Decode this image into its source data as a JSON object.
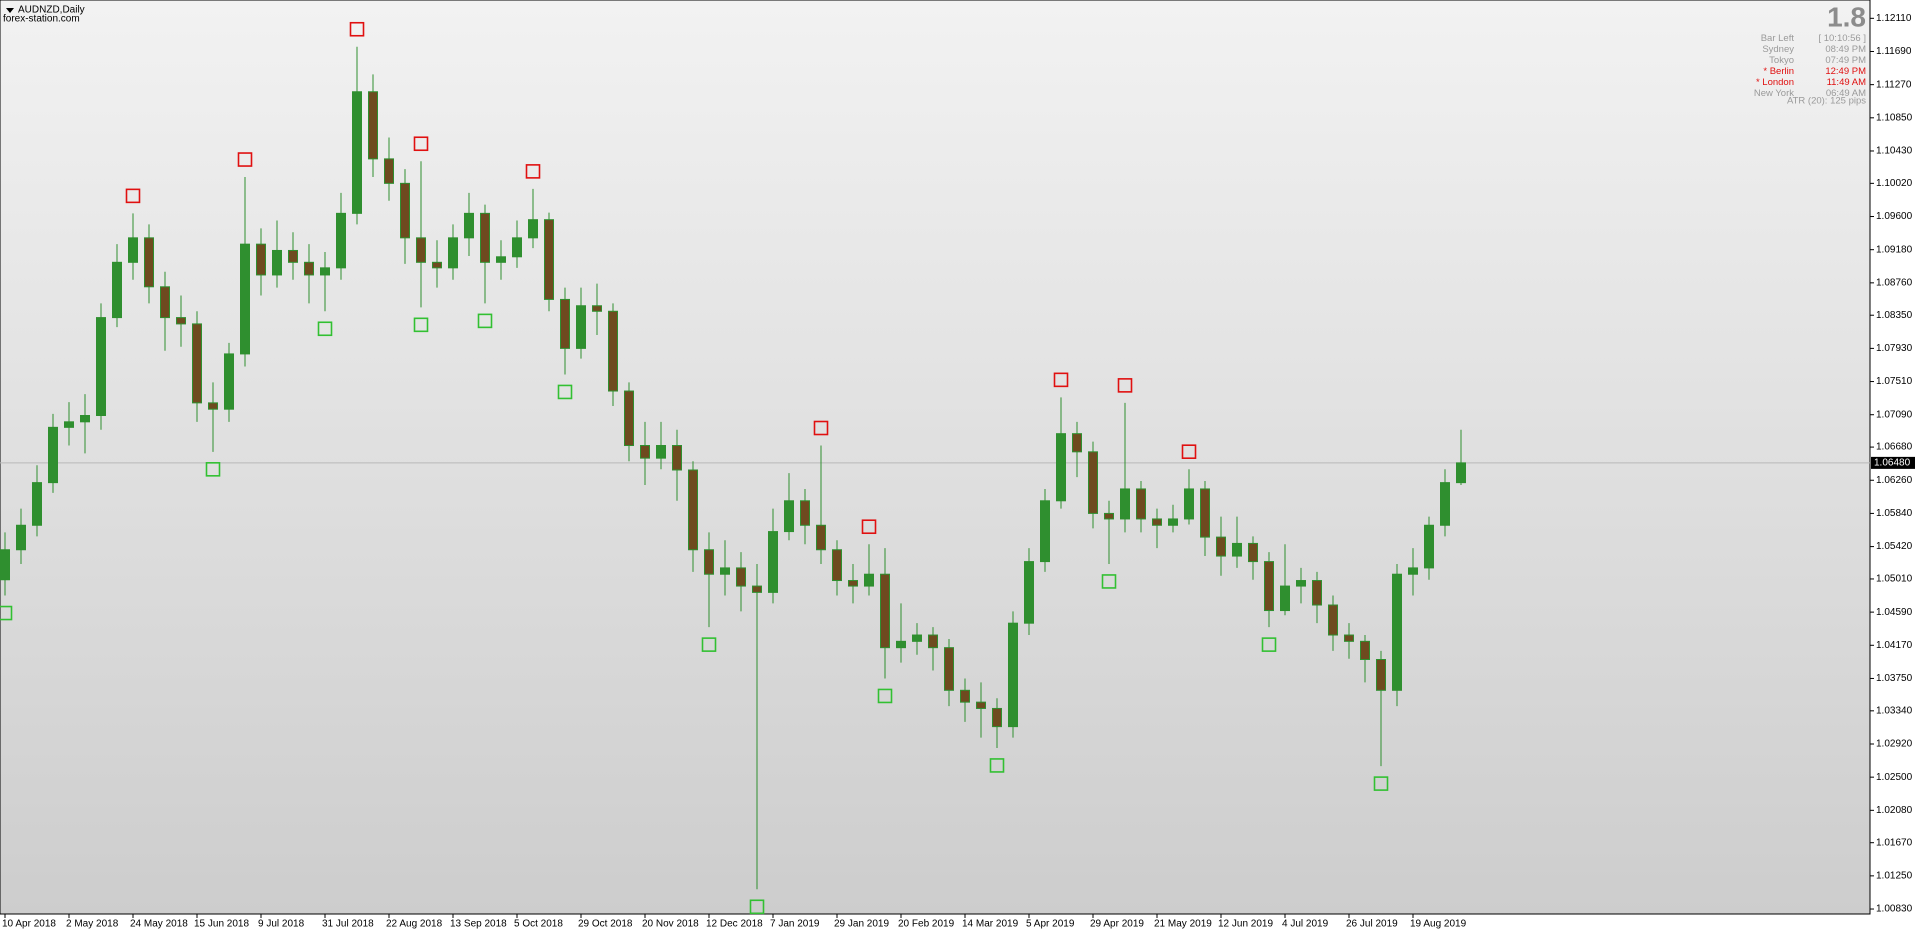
{
  "chart_data": {
    "type": "candlestick",
    "title": "AUDNZD,Daily",
    "subtitle": "forex-station.com",
    "categories": [
      "10 Apr 2018",
      null,
      null,
      null,
      "2 May 2018",
      null,
      null,
      null,
      "24 May 2018",
      null,
      null,
      null,
      "15 Jun 2018",
      null,
      null,
      null,
      "9 Jul 2018",
      null,
      null,
      null,
      "31 Jul 2018",
      null,
      null,
      null,
      "22 Aug 2018",
      null,
      null,
      null,
      "13 Sep 2018",
      null,
      null,
      null,
      "5 Oct 2018",
      null,
      null,
      null,
      "29 Oct 2018",
      null,
      null,
      null,
      "20 Nov 2018",
      null,
      null,
      null,
      "12 Dec 2018",
      null,
      null,
      null,
      "7 Jan 2019",
      null,
      null,
      null,
      "29 Jan 2019",
      null,
      null,
      null,
      "20 Feb 2019",
      null,
      null,
      null,
      "14 Mar 2019",
      null,
      null,
      null,
      "5 Apr 2019",
      null,
      null,
      null,
      "29 Apr 2019",
      null,
      null,
      null,
      "21 May 2019",
      null,
      null,
      null,
      "12 Jun 2019",
      null,
      null,
      null,
      "4 Jul 2019",
      null,
      null,
      null,
      "26 Jul 2019",
      null,
      null,
      null,
      "19 Aug 2019",
      null,
      null,
      null
    ],
    "open": [
      1.05,
      1.0538,
      1.0569,
      1.0623,
      1.0693,
      1.07,
      1.0708,
      1.0832,
      1.0902,
      1.0933,
      1.0871,
      1.0832,
      1.0824,
      1.0724,
      1.0716,
      1.0786,
      1.0925,
      1.0886,
      1.0917,
      1.0902,
      1.0886,
      1.0895,
      1.0964,
      1.1118,
      1.1033,
      1.1002,
      1.0933,
      1.0902,
      1.0895,
      1.0933,
      1.0964,
      1.0902,
      1.0909,
      1.0933,
      1.0956,
      1.0855,
      1.0793,
      1.0847,
      1.084,
      1.0739,
      1.067,
      1.0654,
      1.067,
      1.0639,
      1.0538,
      1.0507,
      1.0515,
      1.0492,
      1.0484,
      1.0561,
      1.06,
      1.0569,
      1.0538,
      1.0499,
      1.0492,
      1.0507,
      1.0414,
      1.0422,
      1.043,
      1.0414,
      1.036,
      1.0345,
      1.0337,
      1.0314,
      1.0445,
      1.0523,
      1.06,
      1.0685,
      1.0662,
      1.0584,
      1.0577,
      1.0615,
      1.0577,
      1.0569,
      1.0577,
      1.0615,
      1.0554,
      1.053,
      1.0546,
      1.0523,
      1.0461,
      1.0492,
      1.0499,
      1.0468,
      1.043,
      1.0422,
      1.0399,
      1.036,
      1.0507,
      1.0515,
      1.0569,
      1.0623
    ],
    "high": [
      1.056,
      1.059,
      1.0645,
      1.071,
      1.0725,
      1.0735,
      1.085,
      1.0925,
      1.0964,
      1.095,
      1.089,
      1.086,
      1.084,
      1.075,
      1.08,
      1.101,
      1.0945,
      1.0955,
      1.094,
      1.0925,
      1.0915,
      1.099,
      1.1175,
      1.114,
      1.106,
      1.102,
      1.103,
      1.093,
      1.095,
      1.099,
      1.0975,
      1.093,
      1.0955,
      1.0995,
      1.0965,
      1.087,
      1.087,
      1.0875,
      1.085,
      1.075,
      1.07,
      1.07,
      1.069,
      1.065,
      1.056,
      1.055,
      1.0535,
      1.052,
      1.059,
      1.0635,
      1.0615,
      1.067,
      1.055,
      1.052,
      1.0545,
      1.054,
      1.047,
      1.0445,
      1.044,
      1.0425,
      1.0375,
      1.037,
      1.035,
      1.046,
      1.054,
      1.0615,
      1.0731,
      1.07,
      1.0675,
      1.06,
      1.0724,
      1.0625,
      1.059,
      1.0595,
      1.064,
      1.0625,
      1.058,
      1.058,
      1.0555,
      1.0535,
      1.0545,
      1.0515,
      1.051,
      1.048,
      1.0445,
      1.043,
      1.041,
      1.052,
      1.054,
      1.058,
      1.064,
      1.069
    ],
    "low": [
      1.048,
      1.052,
      1.0555,
      1.061,
      1.067,
      1.066,
      1.069,
      1.082,
      1.088,
      1.085,
      1.079,
      1.0795,
      1.07,
      1.0662,
      1.07,
      1.077,
      1.086,
      1.087,
      1.088,
      1.085,
      1.084,
      1.088,
      1.095,
      1.101,
      1.098,
      1.09,
      1.0845,
      1.087,
      1.088,
      1.091,
      1.085,
      1.088,
      1.0895,
      1.092,
      1.084,
      1.076,
      1.078,
      1.081,
      1.072,
      1.065,
      1.062,
      1.064,
      1.06,
      1.051,
      1.044,
      1.048,
      1.046,
      1.0108,
      1.047,
      1.055,
      1.0545,
      1.052,
      1.048,
      1.047,
      1.048,
      1.0375,
      1.0395,
      1.0405,
      1.0385,
      1.034,
      1.032,
      1.03,
      1.0287,
      1.03,
      1.043,
      1.051,
      1.059,
      1.063,
      1.0565,
      1.052,
      1.056,
      1.056,
      1.054,
      1.056,
      1.057,
      1.053,
      1.0505,
      1.0515,
      1.05,
      1.044,
      1.0455,
      1.047,
      1.0445,
      1.041,
      1.04,
      1.037,
      1.0264,
      1.034,
      1.048,
      1.05,
      1.0555,
      1.062
    ],
    "close": [
      1.0538,
      1.0569,
      1.0623,
      1.0693,
      1.07,
      1.0708,
      1.0832,
      1.0902,
      1.0933,
      1.0871,
      1.0832,
      1.0824,
      1.0724,
      1.0716,
      1.0786,
      1.0925,
      1.0886,
      1.0917,
      1.0902,
      1.0886,
      1.0895,
      1.0964,
      1.1118,
      1.1033,
      1.1002,
      1.0933,
      1.0902,
      1.0895,
      1.0933,
      1.0964,
      1.0902,
      1.0909,
      1.0933,
      1.0956,
      1.0855,
      1.0793,
      1.0847,
      1.084,
      1.0739,
      1.067,
      1.0654,
      1.067,
      1.0639,
      1.0538,
      1.0507,
      1.0515,
      1.0492,
      1.0484,
      1.0561,
      1.06,
      1.0569,
      1.0538,
      1.0499,
      1.0492,
      1.0507,
      1.0414,
      1.0422,
      1.043,
      1.0414,
      1.036,
      1.0345,
      1.0337,
      1.0314,
      1.0445,
      1.0523,
      1.06,
      1.0685,
      1.0662,
      1.0584,
      1.0577,
      1.0615,
      1.0577,
      1.0569,
      1.0577,
      1.0615,
      1.0554,
      1.053,
      1.0546,
      1.0523,
      1.0461,
      1.0492,
      1.0499,
      1.0468,
      1.043,
      1.0422,
      1.0399,
      1.036,
      1.0507,
      1.0515,
      1.0569,
      1.0623,
      1.0648
    ],
    "fractal_up": [
      null,
      null,
      null,
      null,
      null,
      null,
      null,
      null,
      1.0964,
      null,
      null,
      null,
      null,
      null,
      null,
      1.101,
      null,
      null,
      null,
      null,
      null,
      null,
      1.1175,
      null,
      null,
      null,
      1.103,
      null,
      null,
      null,
      null,
      null,
      null,
      1.0995,
      null,
      null,
      null,
      null,
      null,
      null,
      null,
      null,
      null,
      null,
      null,
      null,
      null,
      null,
      null,
      null,
      null,
      1.067,
      null,
      null,
      1.0545,
      null,
      null,
      null,
      null,
      null,
      null,
      null,
      null,
      null,
      null,
      null,
      1.0731,
      null,
      null,
      null,
      1.0724,
      null,
      null,
      null,
      1.064,
      null,
      null,
      null,
      null,
      null,
      null,
      null,
      null,
      null,
      null,
      null,
      null,
      null,
      null,
      null,
      null,
      null
    ],
    "fractal_down": [
      1.048,
      null,
      null,
      null,
      null,
      null,
      null,
      null,
      null,
      null,
      null,
      null,
      null,
      1.0662,
      null,
      null,
      null,
      null,
      null,
      null,
      1.084,
      null,
      null,
      null,
      null,
      null,
      1.0845,
      null,
      null,
      null,
      1.085,
      null,
      null,
      null,
      null,
      1.076,
      null,
      null,
      null,
      null,
      null,
      null,
      null,
      null,
      1.044,
      null,
      null,
      1.0108,
      null,
      null,
      null,
      null,
      null,
      null,
      null,
      1.0375,
      null,
      null,
      null,
      null,
      null,
      null,
      1.0287,
      null,
      null,
      null,
      null,
      null,
      null,
      1.052,
      null,
      null,
      null,
      null,
      null,
      null,
      null,
      null,
      null,
      1.044,
      null,
      null,
      null,
      null,
      null,
      null,
      1.0264,
      null,
      null,
      null,
      null,
      null
    ],
    "up_color": "#2f8f2f",
    "down_color": "#6e4b1f",
    "wick_color": "#2f8f2f",
    "fractal_up_color": "#e01010",
    "fractal_down_color": "#32c032",
    "ylim": [
      1.00767,
      1.12342
    ],
    "yticks": [
      {
        "value": 1.1211,
        "label": "1.12110"
      },
      {
        "value": 1.1169,
        "label": "1.11690"
      },
      {
        "value": 1.1127,
        "label": "1.11270"
      },
      {
        "value": 1.1085,
        "label": "1.10850"
      },
      {
        "value": 1.1043,
        "label": "1.10430"
      },
      {
        "value": 1.1002,
        "label": "1.10020"
      },
      {
        "value": 1.096,
        "label": "1.09600"
      },
      {
        "value": 1.0918,
        "label": "1.09180"
      },
      {
        "value": 1.0876,
        "label": "1.08760"
      },
      {
        "value": 1.0835,
        "label": "1.08350"
      },
      {
        "value": 1.0793,
        "label": "1.07930"
      },
      {
        "value": 1.0751,
        "label": "1.07510"
      },
      {
        "value": 1.0709,
        "label": "1.07090"
      },
      {
        "value": 1.0668,
        "label": "1.06680"
      },
      {
        "value": 1.0626,
        "label": "1.06260"
      },
      {
        "value": 1.0584,
        "label": "1.05840"
      },
      {
        "value": 1.0542,
        "label": "1.05420"
      },
      {
        "value": 1.0501,
        "label": "1.05010"
      },
      {
        "value": 1.0459,
        "label": "1.04590"
      },
      {
        "value": 1.0417,
        "label": "1.04170"
      },
      {
        "value": 1.0375,
        "label": "1.03750"
      },
      {
        "value": 1.0334,
        "label": "1.03340"
      },
      {
        "value": 1.0292,
        "label": "1.02920"
      },
      {
        "value": 1.025,
        "label": "1.02500"
      },
      {
        "value": 1.0208,
        "label": "1.02080"
      },
      {
        "value": 1.0167,
        "label": "1.01670"
      },
      {
        "value": 1.0125,
        "label": "1.01250"
      },
      {
        "value": 1.0083,
        "label": "1.00830"
      }
    ],
    "last_price": {
      "value": 1.0648,
      "label": "1.06480"
    },
    "info": {
      "big": "1.8",
      "rows": [
        {
          "label": "Bar Left",
          "value": "[ 10:10:56 ]",
          "color": "#9a9a9a"
        },
        {
          "label": "Sydney",
          "value": "08:49 PM",
          "color": "#9a9a9a"
        },
        {
          "label": "Tokyo",
          "value": "07:49 PM",
          "color": "#9a9a9a"
        },
        {
          "label": "* Berlin",
          "value": "12:49 PM",
          "color": "#e01010"
        },
        {
          "label": "* London",
          "value": "11:49 AM",
          "color": "#e01010"
        },
        {
          "label": "New York",
          "value": "06:49 AM",
          "color": "#9a9a9a"
        }
      ],
      "atr": "ATR (20): 125 pips"
    }
  }
}
